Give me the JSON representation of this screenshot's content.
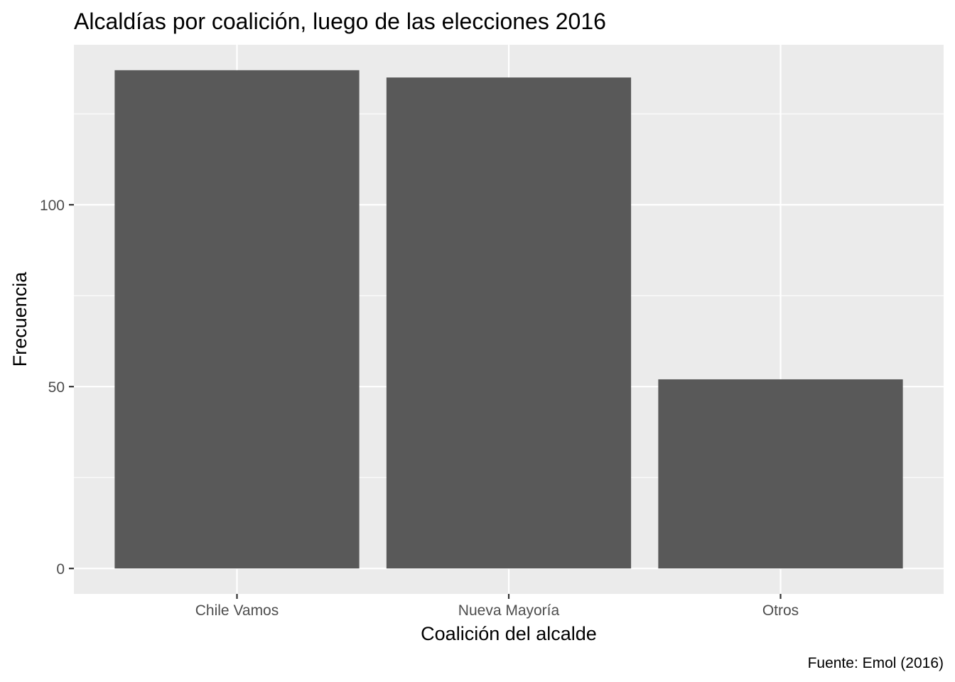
{
  "chart_data": {
    "type": "bar",
    "title": "Alcaldías por coalición, luego de las elecciones 2016",
    "xlabel": "Coalición del alcalde",
    "ylabel": "Frecuencia",
    "caption": "Fuente: Emol (2016)",
    "categories": [
      "Chile Vamos",
      "Nueva Mayoría",
      "Otros"
    ],
    "values": [
      137,
      135,
      52
    ],
    "ylim": [
      -7,
      144
    ],
    "yticks": [
      0,
      50,
      100
    ],
    "yticks_minor": [
      25,
      75,
      125
    ],
    "grid": true,
    "legend": "none",
    "colors": {
      "bar": "#595959",
      "panel": "#ebebeb",
      "grid": "#ffffff",
      "axis_text": "#4d4d4d",
      "text": "#000000"
    }
  }
}
